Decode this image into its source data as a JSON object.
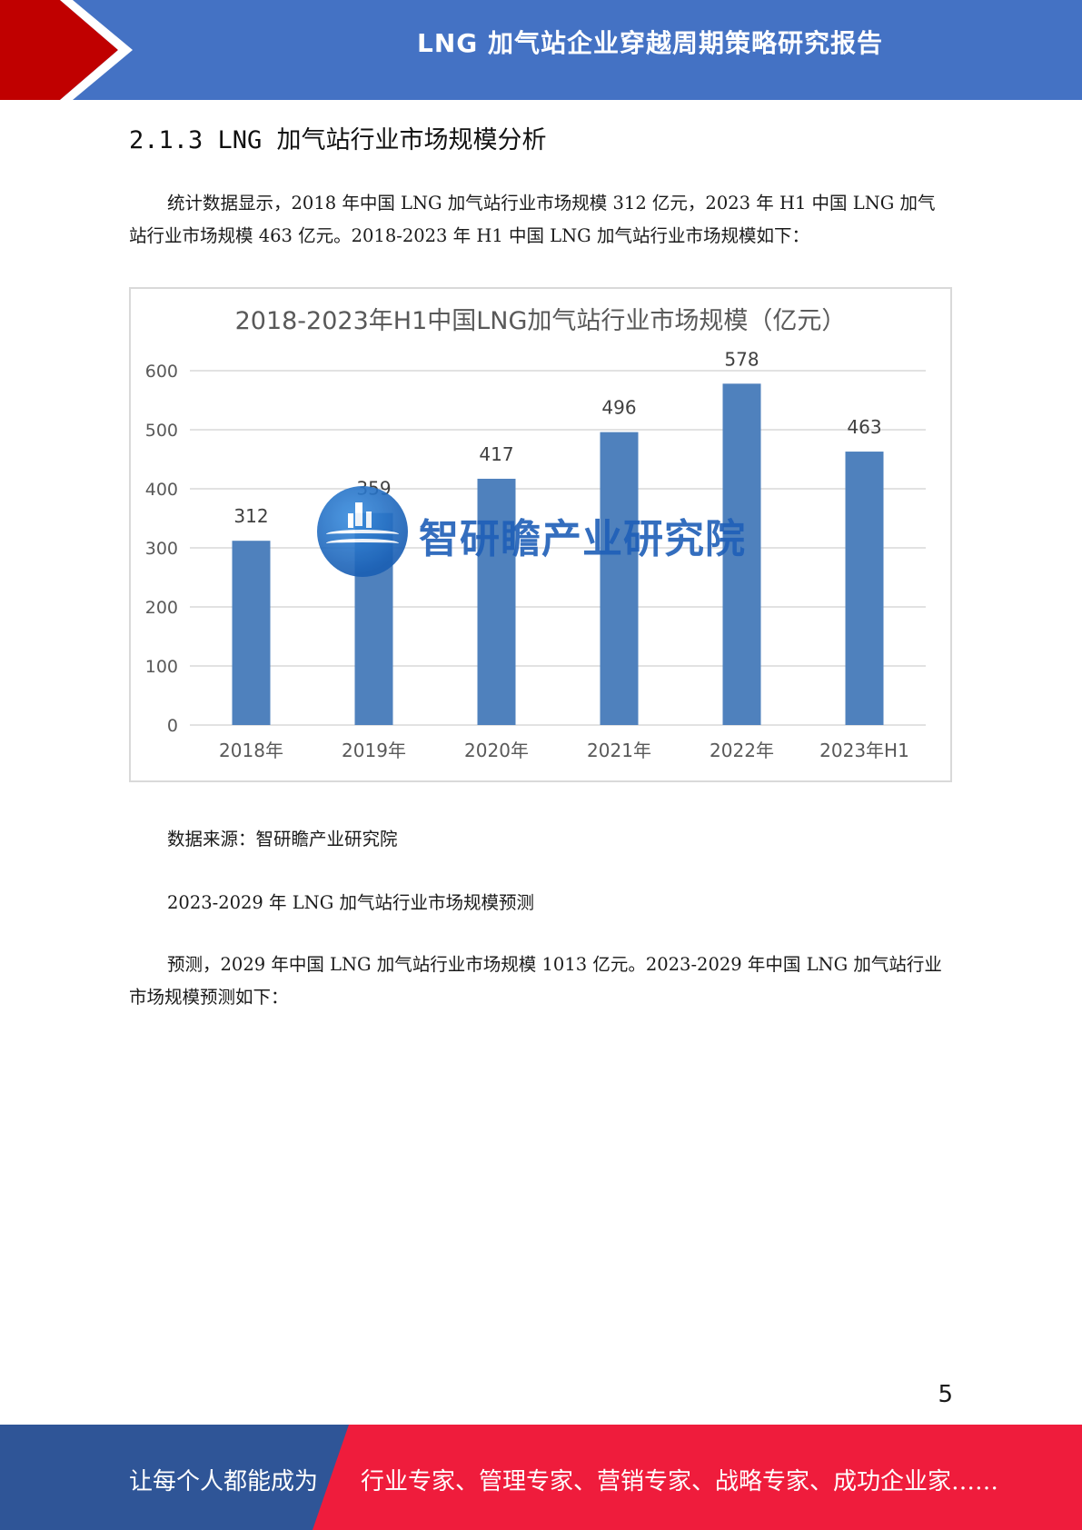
{
  "header": {
    "title": "LNG 加气站企业穿越周期策略研究报告"
  },
  "section_title": "2.1.3 LNG 加气站行业市场规模分析",
  "paragraph_1": "统计数据显示，2018 年中国 LNG 加气站行业市场规模 312 亿元，2023 年 H1 中国 LNG 加气站行业市场规模 463 亿元。2018-2023 年 H1 中国 LNG 加气站行业市场规模如下：",
  "chart_data": {
    "type": "bar",
    "title": "2018-2023年H1中国LNG加气站行业市场规模（亿元）",
    "categories": [
      "2018年",
      "2019年",
      "2020年",
      "2021年",
      "2022年",
      "2023年H1"
    ],
    "values": [
      312,
      359,
      417,
      496,
      578,
      463
    ],
    "ylim": [
      0,
      600
    ],
    "yticks": [
      0,
      100,
      200,
      300,
      400,
      500,
      600
    ],
    "grid": true,
    "bar_color": "#4f81bd",
    "xlabel": "",
    "ylabel": ""
  },
  "watermark": {
    "text": "智研瞻产业研究院"
  },
  "source_note": "数据来源：智研瞻产业研究院",
  "forecast_heading": "2023-2029 年 LNG 加气站行业市场规模预测",
  "paragraph_3": "预测，2029 年中国 LNG 加气站行业市场规模 1013 亿元。2023-2029 年中国 LNG 加气站行业市场规模预测如下：",
  "page_number": "5",
  "footer": {
    "left": "让每个人都能成为",
    "right": "行业专家、管理专家、营销专家、战略专家、成功企业家……"
  },
  "colors": {
    "header_blue": "#4472c4",
    "accent_red": "#c00000",
    "footer_red": "#ef1c3c",
    "footer_blue": "#2f5597"
  }
}
